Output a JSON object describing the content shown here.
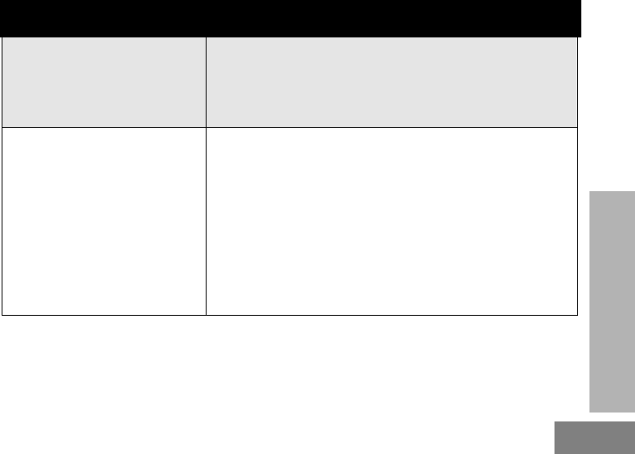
{
  "colors": {
    "header_bar": "#000000",
    "table_header_row": "#e5e5e5",
    "side_tab": "#b3b3b3",
    "page_box": "#808080"
  },
  "table": {
    "header": [
      "",
      ""
    ],
    "rows": [
      [
        "",
        ""
      ]
    ]
  }
}
